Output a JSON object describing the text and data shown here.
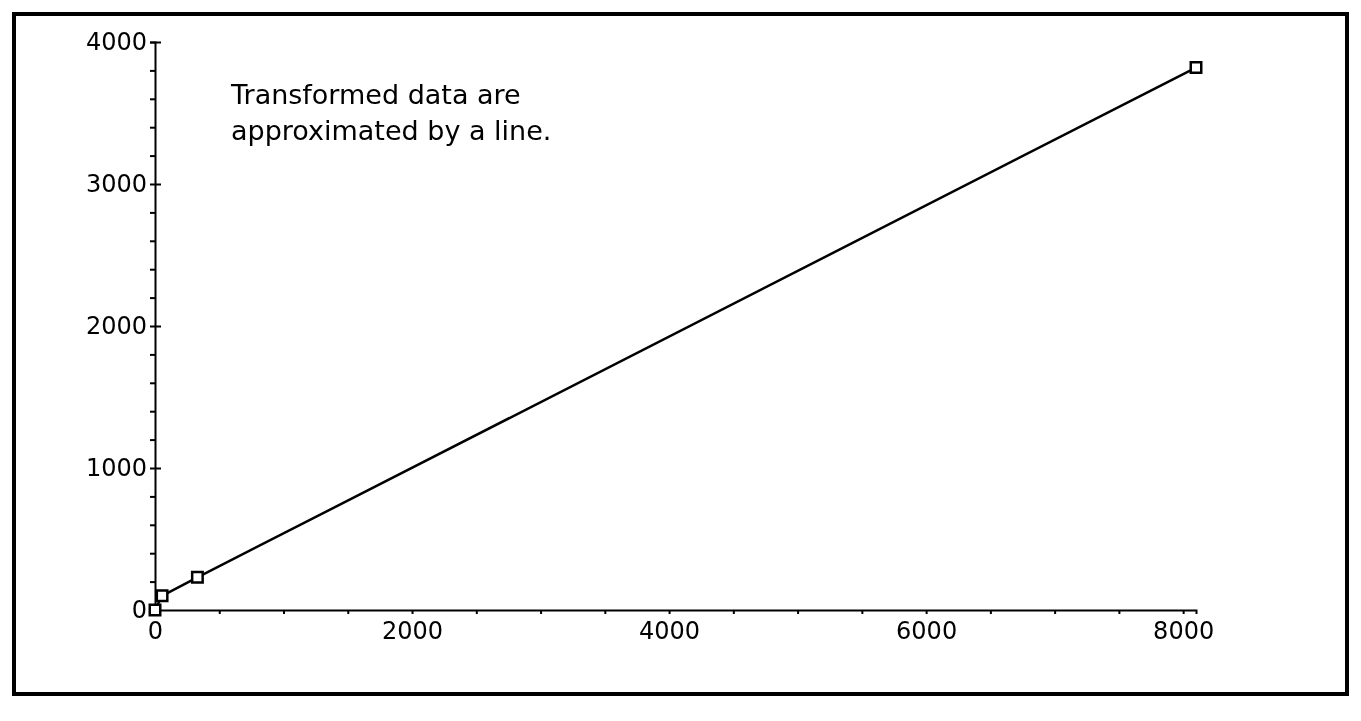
{
  "chart_data": {
    "type": "line",
    "annotations": [
      "Transformed data are approximated by a line."
    ],
    "series": [
      {
        "color": "#000000",
        "x": [
          0,
          55,
          330,
          8100
        ],
        "values": [
          0,
          100,
          230,
          3820
        ]
      }
    ],
    "marker": "square",
    "line_style": "solid",
    "grid": false,
    "xlim": [
      0,
      8100
    ],
    "ylim": [
      0,
      4000
    ],
    "xticks": [
      0,
      {
        "value": 500,
        "label": null
      },
      {
        "value": 1000,
        "label": null
      },
      {
        "value": 1500,
        "label": null
      },
      2000,
      {
        "value": 2500,
        "label": null
      },
      {
        "value": 3000,
        "label": null
      },
      {
        "value": 3500,
        "label": null
      },
      4000,
      {
        "value": 4500,
        "label": null
      },
      {
        "value": 5000,
        "label": null
      },
      {
        "value": 5500,
        "label": null
      },
      6000,
      {
        "value": 6500,
        "label": null
      },
      {
        "value": 7000,
        "label": null
      },
      {
        "value": 7500,
        "label": null
      },
      8000
    ],
    "yticks": [
      0,
      {
        "value": 200,
        "label": null
      },
      {
        "value": 400,
        "label": null
      },
      {
        "value": 600,
        "label": null
      },
      {
        "value": 800,
        "label": null
      },
      1000,
      {
        "value": 1200,
        "label": null
      },
      {
        "value": 1400,
        "label": null
      },
      {
        "value": 1600,
        "label": null
      },
      {
        "value": 1800,
        "label": null
      },
      2000,
      {
        "value": 2200,
        "label": null
      },
      {
        "value": 2400,
        "label": null
      },
      {
        "value": 2600,
        "label": null
      },
      {
        "value": 2800,
        "label": null
      },
      3000,
      {
        "value": 3200,
        "label": null
      },
      {
        "value": 3400,
        "label": null
      },
      {
        "value": 3600,
        "label": null
      },
      {
        "value": 3800,
        "label": null
      },
      4000
    ]
  }
}
